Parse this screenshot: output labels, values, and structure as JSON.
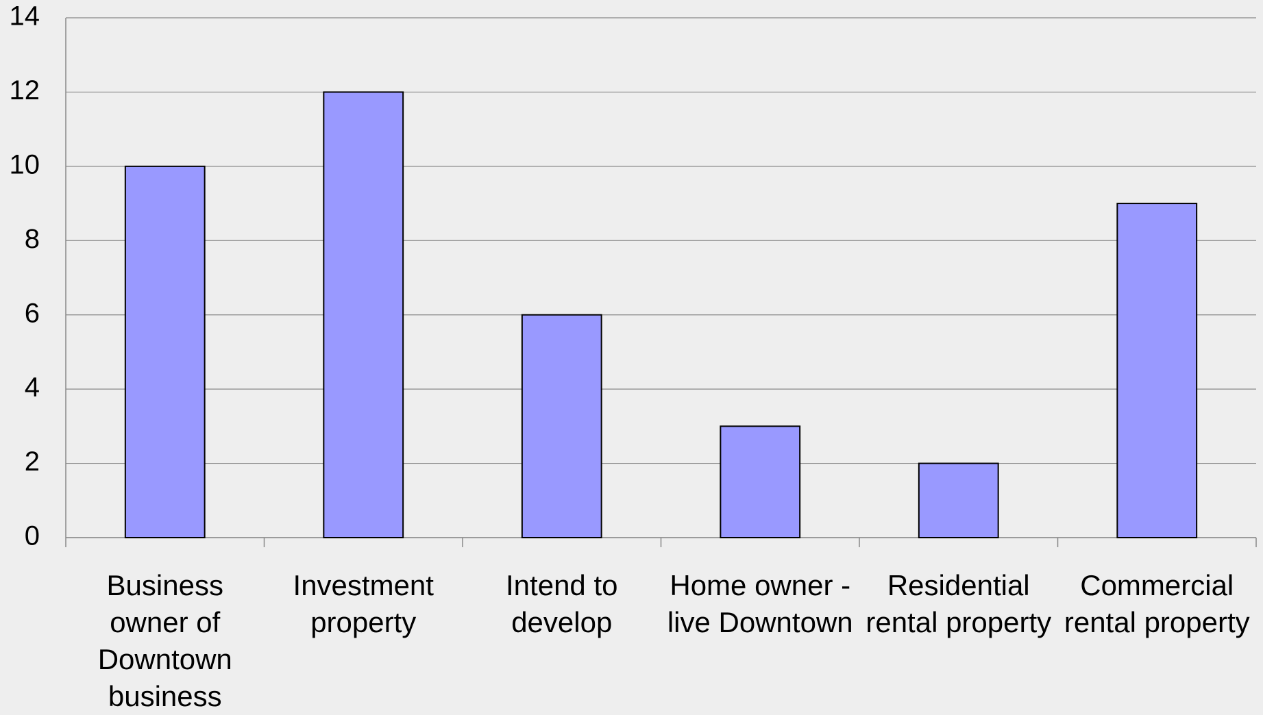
{
  "chart_data": {
    "type": "bar",
    "categories": [
      "Business owner of Downtown business",
      "Investment property",
      "Intend to develop",
      "Home owner - live Downtown",
      "Residential rental property",
      "Commercial rental property"
    ],
    "values": [
      10,
      12,
      6,
      3,
      2,
      9
    ],
    "color": "#9999ff",
    "ylim": [
      0,
      14
    ],
    "yticks": [
      0,
      2,
      4,
      6,
      8,
      10,
      12,
      14
    ],
    "grid": true
  }
}
